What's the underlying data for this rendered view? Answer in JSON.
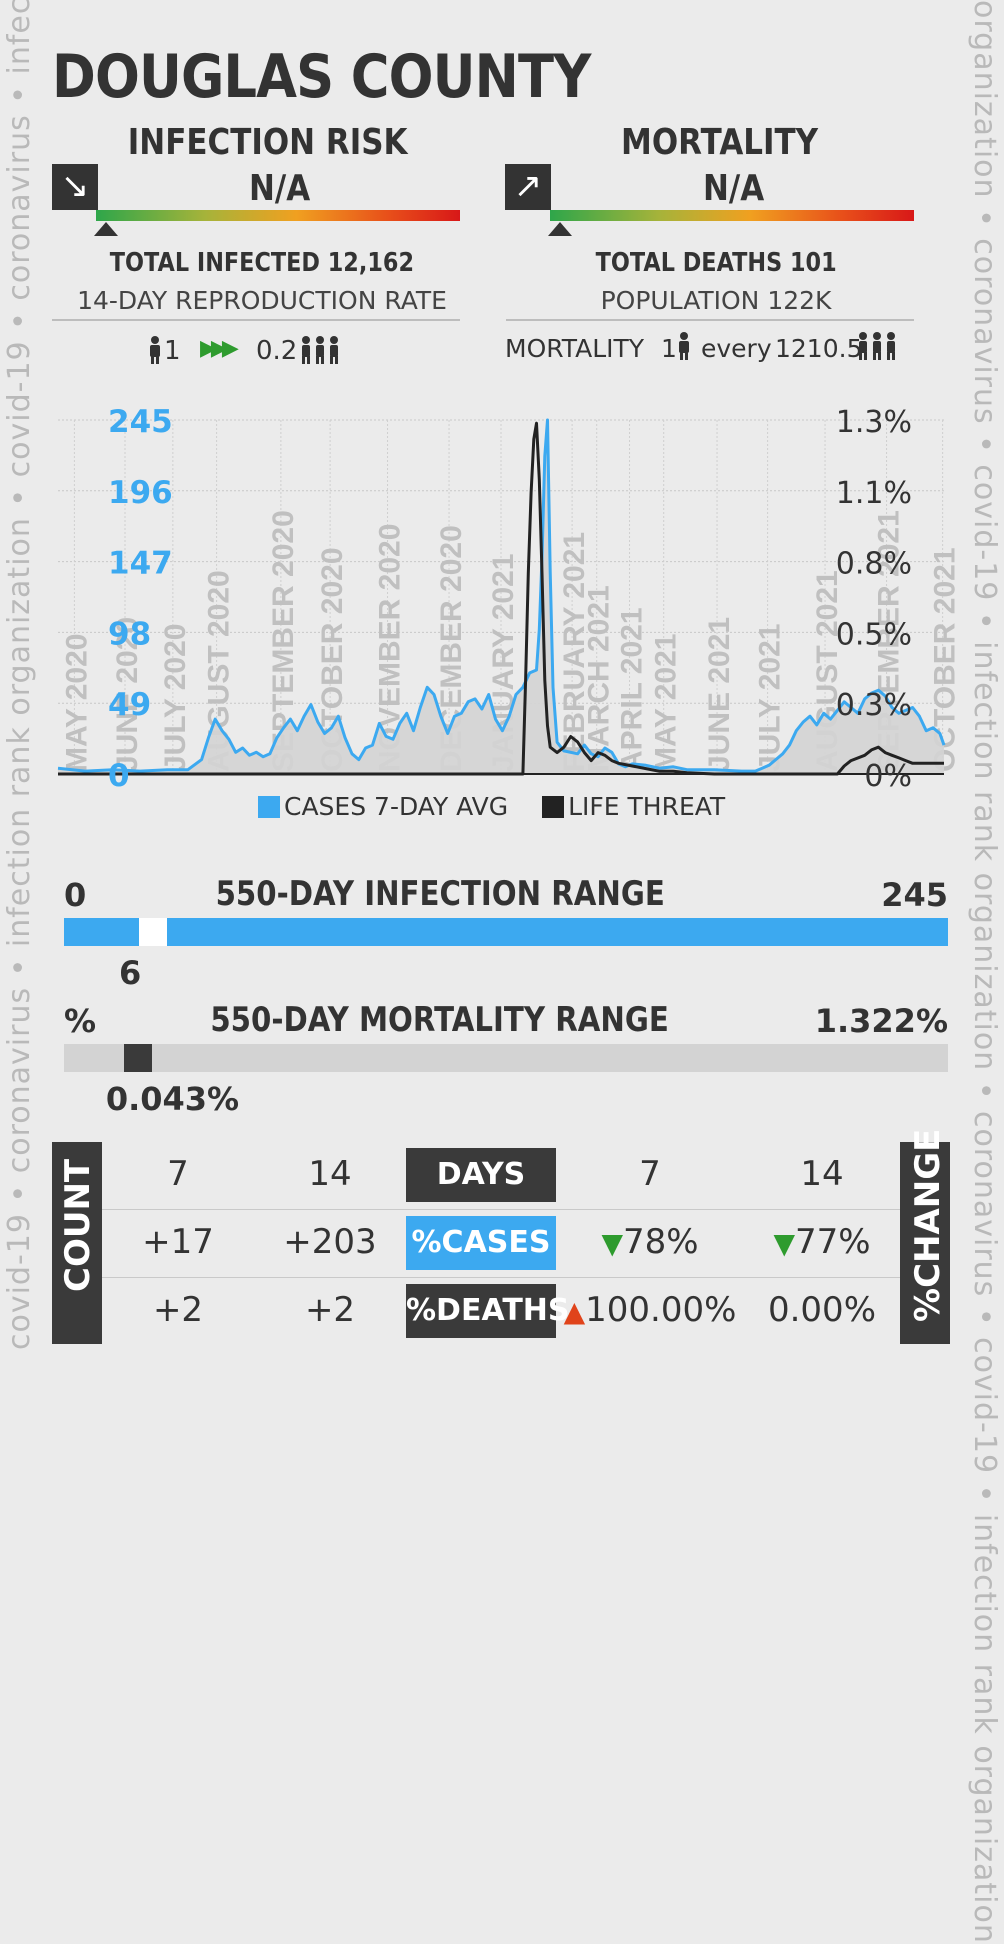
{
  "watermark": {
    "left_text": "covid-19 • coronavirus • infection rank organization • covid-19 • coronavirus • infection rank organization • covid-19",
    "right_text": "organization • coronavirus • covid-19 • infection rank organization • coronavirus • covid-19 • infection rank organization"
  },
  "title": "DOUGLAS COUNTY",
  "infection": {
    "heading": "INFECTION RISK",
    "value": "N/A",
    "arrow_icon": "↘",
    "total_label": "TOTAL INFECTED 12,162",
    "sub_label": "14-DAY REPRODUCTION RATE",
    "rate_left": "1",
    "rate_right": "0.2",
    "rate_arrows": "▶▶▶"
  },
  "mortality": {
    "heading": "MORTALITY",
    "value": "N/A",
    "arrow_icon": "↗",
    "total_label": "TOTAL DEATHS 101",
    "sub_label": "POPULATION 122K",
    "ratio_prefix": "MORTALITY",
    "ratio_one": "1",
    "ratio_every": "every",
    "ratio_value": "1210.5"
  },
  "colors": {
    "cases": "#3ca9f0",
    "life": "#222222",
    "dark": "#3a3a3a",
    "down": "#2e9b2e",
    "up": "#e0431a"
  },
  "chart_data": {
    "type": "line",
    "x_labels": [
      "MAY 2020",
      "JUNE 2020",
      "JULY 2020",
      "AUGUST 2020",
      "SEPTEMBER 2020",
      "OCTOBER 2020",
      "NOVEMBER 2020",
      "DECEMBER 2020",
      "JANUARY 2021",
      "FEBRUARY 2021",
      "MARCH 2021",
      "APRIL 2021",
      "MAY 2021",
      "JUNE 2021",
      "JULY 2021",
      "AUGUST 2021",
      "SEPTEMBER 2021",
      "OCTOBER 2021"
    ],
    "x_label_day": [
      12,
      49,
      84,
      116,
      163,
      199,
      241,
      286,
      324,
      376,
      394,
      418,
      443,
      482,
      519,
      561,
      606,
      647
    ],
    "y_left_ticks": [
      "0",
      "49",
      "98",
      "147",
      "196",
      "245"
    ],
    "y_left_max": 245,
    "y_right_ticks": [
      "0%",
      "0.3%",
      "0.5%",
      "0.8%",
      "1.1%",
      "1.3%"
    ],
    "y_right_max": 1.322,
    "x_max_day": 648,
    "series": [
      {
        "name": "CASES 7-DAY AVG",
        "points": [
          [
            0,
            4
          ],
          [
            20,
            2
          ],
          [
            40,
            3
          ],
          [
            60,
            2
          ],
          [
            80,
            3
          ],
          [
            95,
            3
          ],
          [
            105,
            10
          ],
          [
            110,
            25
          ],
          [
            115,
            38
          ],
          [
            120,
            30
          ],
          [
            125,
            24
          ],
          [
            130,
            15
          ],
          [
            135,
            18
          ],
          [
            140,
            13
          ],
          [
            145,
            15
          ],
          [
            150,
            12
          ],
          [
            155,
            14
          ],
          [
            160,
            25
          ],
          [
            165,
            32
          ],
          [
            170,
            38
          ],
          [
            175,
            30
          ],
          [
            180,
            40
          ],
          [
            185,
            48
          ],
          [
            190,
            36
          ],
          [
            195,
            28
          ],
          [
            200,
            32
          ],
          [
            205,
            40
          ],
          [
            210,
            25
          ],
          [
            215,
            14
          ],
          [
            220,
            10
          ],
          [
            225,
            18
          ],
          [
            230,
            20
          ],
          [
            235,
            35
          ],
          [
            240,
            26
          ],
          [
            245,
            24
          ],
          [
            250,
            35
          ],
          [
            255,
            42
          ],
          [
            260,
            30
          ],
          [
            265,
            46
          ],
          [
            270,
            60
          ],
          [
            275,
            55
          ],
          [
            280,
            40
          ],
          [
            285,
            28
          ],
          [
            290,
            40
          ],
          [
            295,
            42
          ],
          [
            300,
            50
          ],
          [
            305,
            52
          ],
          [
            310,
            45
          ],
          [
            315,
            55
          ],
          [
            320,
            38
          ],
          [
            325,
            30
          ],
          [
            330,
            40
          ],
          [
            335,
            55
          ],
          [
            340,
            60
          ],
          [
            345,
            70
          ],
          [
            350,
            72
          ],
          [
            352,
            100
          ],
          [
            354,
            150
          ],
          [
            356,
            220
          ],
          [
            358,
            245
          ],
          [
            360,
            140
          ],
          [
            362,
            60
          ],
          [
            365,
            22
          ],
          [
            370,
            16
          ],
          [
            380,
            14
          ],
          [
            385,
            20
          ],
          [
            390,
            14
          ],
          [
            395,
            12
          ],
          [
            400,
            18
          ],
          [
            405,
            15
          ],
          [
            410,
            7
          ],
          [
            415,
            5
          ],
          [
            420,
            7
          ],
          [
            430,
            6
          ],
          [
            440,
            4
          ],
          [
            450,
            5
          ],
          [
            460,
            3
          ],
          [
            470,
            3
          ],
          [
            480,
            3
          ],
          [
            500,
            2
          ],
          [
            510,
            2
          ],
          [
            515,
            4
          ],
          [
            520,
            6
          ],
          [
            525,
            10
          ],
          [
            530,
            14
          ],
          [
            535,
            20
          ],
          [
            540,
            30
          ],
          [
            545,
            36
          ],
          [
            550,
            40
          ],
          [
            555,
            34
          ],
          [
            560,
            42
          ],
          [
            565,
            38
          ],
          [
            570,
            44
          ],
          [
            575,
            50
          ],
          [
            580,
            46
          ],
          [
            585,
            42
          ],
          [
            590,
            52
          ],
          [
            595,
            56
          ],
          [
            600,
            58
          ],
          [
            605,
            54
          ],
          [
            610,
            46
          ],
          [
            615,
            42
          ],
          [
            620,
            44
          ],
          [
            625,
            46
          ],
          [
            630,
            40
          ],
          [
            635,
            30
          ],
          [
            640,
            32
          ],
          [
            645,
            28
          ],
          [
            648,
            20
          ]
        ]
      },
      {
        "name": "LIFE THREAT",
        "points": [
          [
            0,
            0
          ],
          [
            100,
            0
          ],
          [
            200,
            0
          ],
          [
            300,
            0
          ],
          [
            340,
            0
          ],
          [
            342,
            0.35
          ],
          [
            344,
            0.75
          ],
          [
            346,
            1.05
          ],
          [
            348,
            1.25
          ],
          [
            350,
            1.31
          ],
          [
            352,
            1.1
          ],
          [
            354,
            0.75
          ],
          [
            356,
            0.35
          ],
          [
            358,
            0.18
          ],
          [
            360,
            0.1
          ],
          [
            365,
            0.08
          ],
          [
            370,
            0.1
          ],
          [
            375,
            0.14
          ],
          [
            380,
            0.12
          ],
          [
            385,
            0.08
          ],
          [
            390,
            0.05
          ],
          [
            395,
            0.08
          ],
          [
            400,
            0.07
          ],
          [
            405,
            0.05
          ],
          [
            410,
            0.04
          ],
          [
            420,
            0.03
          ],
          [
            430,
            0.02
          ],
          [
            440,
            0.01
          ],
          [
            450,
            0.01
          ],
          [
            460,
            0.005
          ],
          [
            480,
            0.0
          ],
          [
            500,
            0.0
          ],
          [
            520,
            0.0
          ],
          [
            540,
            0.0
          ],
          [
            550,
            0.0
          ],
          [
            560,
            0.0
          ],
          [
            570,
            0.0
          ],
          [
            575,
            0.03
          ],
          [
            580,
            0.05
          ],
          [
            590,
            0.07
          ],
          [
            595,
            0.09
          ],
          [
            600,
            0.1
          ],
          [
            605,
            0.08
          ],
          [
            610,
            0.07
          ],
          [
            615,
            0.06
          ],
          [
            620,
            0.05
          ],
          [
            625,
            0.04
          ],
          [
            630,
            0.04
          ],
          [
            640,
            0.04
          ],
          [
            648,
            0.04
          ]
        ]
      }
    ]
  },
  "legend": {
    "cases": "CASES 7-DAY AVG",
    "life": "LIFE THREAT"
  },
  "infection_range": {
    "title": "550-DAY INFECTION RANGE",
    "min": "0",
    "max": "245",
    "current": "6",
    "current_value": 6,
    "max_value": 245
  },
  "mortality_range": {
    "title": "550-DAY MORTALITY RANGE",
    "min": "%",
    "max": "1.322%",
    "current": "0.043%",
    "current_value": 0.043,
    "max_value": 1.322
  },
  "table": {
    "count_label": "COUNT",
    "change_label": "%CHANGE",
    "days_label": "DAYS",
    "cases_label": "%CASES",
    "deaths_label": "%DEATHS",
    "days_left": [
      "7",
      "14"
    ],
    "days_right": [
      "7",
      "14"
    ],
    "cases_counts": [
      "+17",
      "+203"
    ],
    "deaths_counts": [
      "+2",
      "+2"
    ],
    "cases_change": [
      "78%",
      "77%"
    ],
    "deaths_change": [
      "100.00%",
      "0.00%"
    ]
  }
}
